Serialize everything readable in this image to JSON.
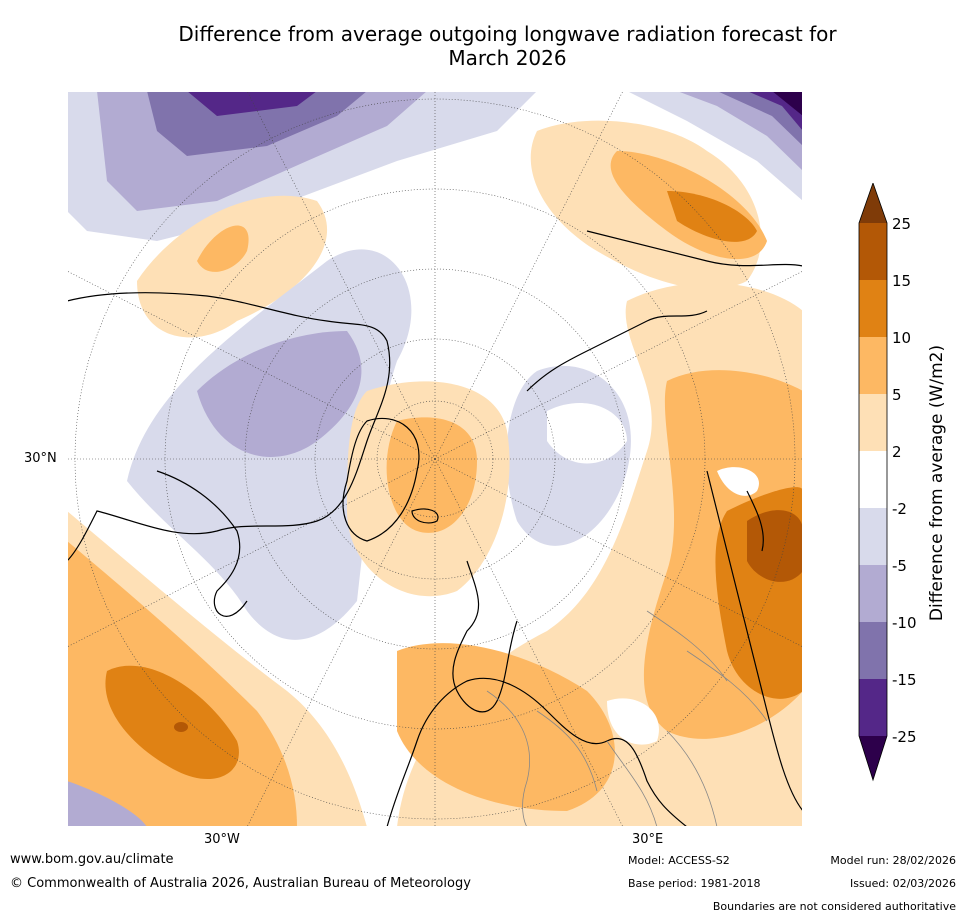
{
  "title_line1": "Difference from average outgoing longwave radiation forecast for",
  "title_line2": "March 2026",
  "map_labels": {
    "lat_left": "30°N",
    "lon_left": "30°W",
    "lon_right": "30°E"
  },
  "colorbar": {
    "label": "Difference from average (W/m2)",
    "ticks": [
      "25",
      "15",
      "10",
      "5",
      "2",
      "-2",
      "-5",
      "-10",
      "-15",
      "-25"
    ],
    "colors": {
      "gt25": "#7f3b08",
      "15_25": "#b35806",
      "10_15": "#e08214",
      "5_10": "#fdb863",
      "2_5": "#fee0b6",
      "neutral": "#ffffff",
      "m5_m2": "#d8daeb",
      "m10_m5": "#b2abd2",
      "m15_m10": "#8073ac",
      "m25_m15": "#542788",
      "lt_m25": "#2d004b"
    }
  },
  "footer": {
    "url": "www.bom.gov.au/climate",
    "copyright": "© Commonwealth of Australia 2026, Australian Bureau of Meteorology",
    "model": "Model: ACCESS-S2",
    "base_period": "Base period: 1981-2018",
    "model_run": "Model run: 28/02/2026",
    "issued": "Issued: 02/03/2026",
    "disclaimer": "Boundaries are not considered authoritative"
  }
}
